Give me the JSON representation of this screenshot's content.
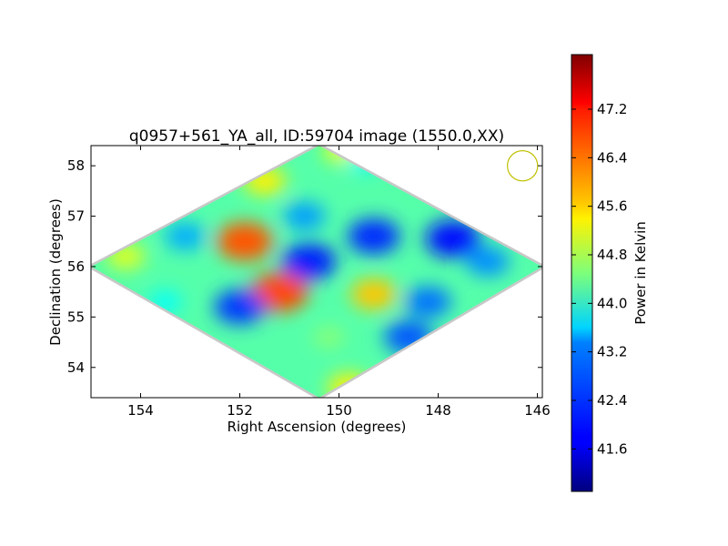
{
  "chart_data": {
    "type": "heatmap",
    "title": "q0957+561_YA_all, ID:59704 image (1550.0,XX)",
    "xlabel": "Right Ascension (degrees)",
    "ylabel": "Declination (degrees)",
    "xlim": [
      155.0,
      145.9
    ],
    "ylim": [
      53.4,
      58.4
    ],
    "x_ticks": [
      "154",
      "152",
      "150",
      "148",
      "146"
    ],
    "x_tick_values": [
      154,
      152,
      150,
      148,
      146
    ],
    "y_ticks": [
      "54",
      "55",
      "56",
      "57",
      "58"
    ],
    "y_tick_values": [
      54,
      55,
      56,
      57,
      58
    ],
    "image_region": "diamond",
    "region_vertices": [
      {
        "ra": 155.0,
        "dec": 56.0
      },
      {
        "ra": 150.4,
        "dec": 58.4
      },
      {
        "ra": 145.9,
        "dec": 56.0
      },
      {
        "ra": 150.4,
        "dec": 53.4
      }
    ],
    "background_value": 44.2,
    "features": [
      {
        "ra": 151.9,
        "dec": 56.5,
        "value": 46.6
      },
      {
        "ra": 151.2,
        "dec": 55.5,
        "value": 46.7
      },
      {
        "ra": 149.3,
        "dec": 55.45,
        "value": 45.8
      },
      {
        "ra": 151.5,
        "dec": 57.7,
        "value": 45.5
      },
      {
        "ra": 149.9,
        "dec": 58.3,
        "value": 45.3
      },
      {
        "ra": 149.8,
        "dec": 53.6,
        "value": 45.5
      },
      {
        "ra": 154.3,
        "dec": 56.2,
        "value": 45.2
      },
      {
        "ra": 150.6,
        "dec": 56.1,
        "value": 42.0
      },
      {
        "ra": 149.3,
        "dec": 56.6,
        "value": 42.1
      },
      {
        "ra": 147.7,
        "dec": 56.55,
        "value": 41.9
      },
      {
        "ra": 148.2,
        "dec": 55.3,
        "value": 42.6
      },
      {
        "ra": 152.0,
        "dec": 55.2,
        "value": 42.2
      },
      {
        "ra": 148.6,
        "dec": 54.6,
        "value": 42.4
      },
      {
        "ra": 153.1,
        "dec": 56.6,
        "value": 43.0
      },
      {
        "ra": 150.7,
        "dec": 57.0,
        "value": 42.9
      },
      {
        "ra": 147.0,
        "dec": 56.1,
        "value": 42.8
      },
      {
        "ra": 153.5,
        "dec": 55.3,
        "value": 43.6
      },
      {
        "ra": 150.2,
        "dec": 54.6,
        "value": 44.6
      },
      {
        "ra": 149.5,
        "dec": 58.1,
        "value": 43.6
      }
    ],
    "beam_marker": {
      "ra": 146.3,
      "dec": 58.0,
      "radius_deg": 0.3,
      "color": "#bfbf00"
    },
    "colorbar": {
      "label": "Power in Kelvin",
      "min": 40.9,
      "max": 48.1,
      "ticks": [
        "41.6",
        "42.4",
        "43.2",
        "44.0",
        "44.8",
        "45.6",
        "46.4",
        "47.2"
      ],
      "tick_values": [
        41.6,
        42.4,
        43.2,
        44.0,
        44.8,
        45.6,
        46.4,
        47.2
      ],
      "colormap": "jet"
    }
  }
}
